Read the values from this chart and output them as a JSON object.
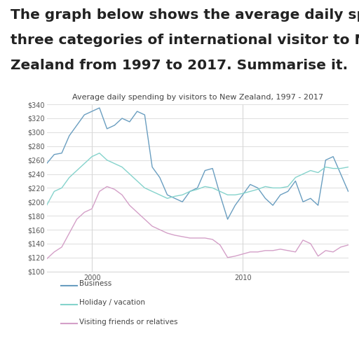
{
  "title": "Average daily spending by visitors to New Zealand, 1997 - 2017",
  "header_lines": [
    "The graph below shows the average daily spend of",
    "three categories of international visitor to New",
    "Zealand from 1997 to 2017. Summarise it."
  ],
  "years": [
    1997,
    1997.5,
    1998,
    1998.5,
    1999,
    1999.5,
    2000,
    2000.5,
    2001,
    2001.5,
    2002,
    2002.5,
    2003,
    2003.5,
    2004,
    2004.5,
    2005,
    2005.5,
    2006,
    2006.5,
    2007,
    2007.5,
    2008,
    2008.5,
    2009,
    2009.5,
    2010,
    2010.5,
    2011,
    2011.5,
    2012,
    2012.5,
    2013,
    2013.5,
    2014,
    2014.5,
    2015,
    2015.5,
    2016,
    2016.5,
    2017
  ],
  "business": [
    255,
    268,
    270,
    295,
    310,
    325,
    330,
    335,
    305,
    310,
    320,
    315,
    330,
    325,
    250,
    235,
    210,
    205,
    200,
    215,
    220,
    245,
    248,
    210,
    175,
    195,
    210,
    225,
    220,
    205,
    195,
    210,
    215,
    230,
    200,
    205,
    195,
    260,
    265,
    240,
    215
  ],
  "holiday": [
    195,
    215,
    220,
    235,
    245,
    255,
    265,
    270,
    260,
    255,
    250,
    240,
    230,
    220,
    215,
    210,
    205,
    208,
    210,
    215,
    218,
    222,
    220,
    215,
    210,
    210,
    212,
    215,
    218,
    222,
    220,
    220,
    222,
    235,
    240,
    245,
    242,
    250,
    248,
    248,
    250
  ],
  "visiting": [
    118,
    128,
    135,
    155,
    175,
    185,
    190,
    215,
    222,
    218,
    210,
    195,
    185,
    175,
    165,
    160,
    155,
    152,
    150,
    148,
    148,
    148,
    146,
    138,
    120,
    122,
    125,
    128,
    128,
    130,
    130,
    132,
    130,
    128,
    145,
    140,
    122,
    130,
    128,
    135,
    138
  ],
  "business_color": "#6a9ec0",
  "holiday_color": "#85d3cc",
  "visiting_color": "#d4a0c8",
  "ylim": [
    100,
    340
  ],
  "yticks": [
    100,
    120,
    140,
    160,
    180,
    200,
    220,
    240,
    260,
    280,
    300,
    320,
    340
  ],
  "xticks": [
    2000,
    2010
  ],
  "grid_color": "#d8d8d8",
  "legend_labels": [
    "Business",
    "Holiday / vacation",
    "Visiting friends or relatives"
  ],
  "background_color": "#ffffff",
  "text_color": "#222222"
}
